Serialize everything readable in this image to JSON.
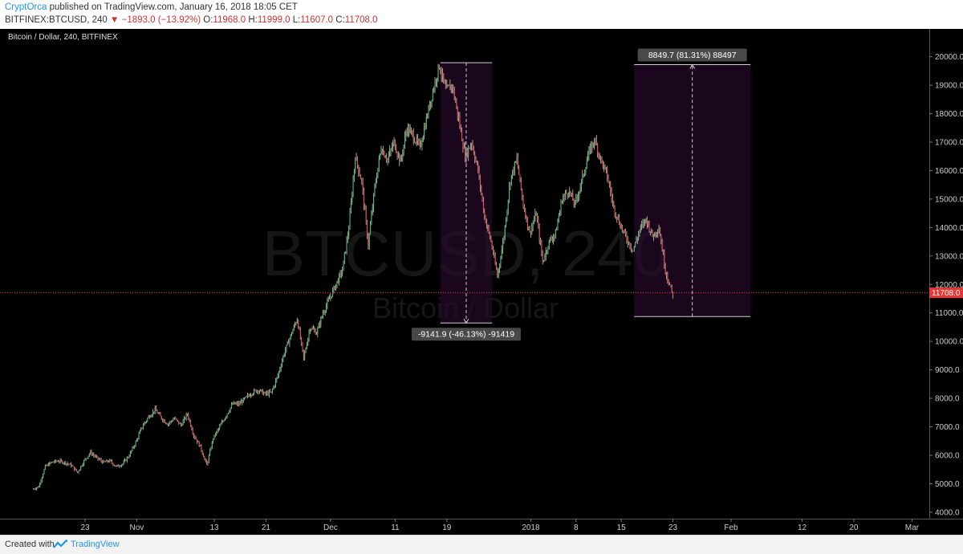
{
  "header": {
    "author": "CryptOrca",
    "published": "published on TradingView.com, January 16, 2018 18:05 CET",
    "symbol": "BITFINEX:BTCUSD, 240",
    "change": "−1893.0 (−13.92%)",
    "o_label": "O:",
    "o_value": "11968.0",
    "h_label": "H:",
    "h_value": "11999.0",
    "l_label": "L:",
    "l_value": "11607.0",
    "c_label": "C:",
    "c_value": "11708.0"
  },
  "footer": {
    "created": "Created with",
    "brand": "TradingView"
  },
  "chart_data": {
    "type": "candlestick",
    "title": "Bitcoin / Dollar, 240, BITFINEX",
    "watermark_symbol": "BTCUSD, 240",
    "watermark_name": "Bitcoin / Dollar",
    "ylim": [
      3800,
      20300
    ],
    "y_ticks": [
      "20000.0",
      "19000.0",
      "18000.0",
      "17000.0",
      "16000.0",
      "15000.0",
      "14000.0",
      "13000.0",
      "12000.0",
      "11000.0",
      "10000.0",
      "9000.0",
      "8000.0",
      "7000.0",
      "6000.0",
      "5000.0",
      "4000.0"
    ],
    "x_ticks": [
      {
        "label": "23",
        "day": 1
      },
      {
        "label": "Nov",
        "day": 9
      },
      {
        "label": "13",
        "day": 21
      },
      {
        "label": "21",
        "day": 29
      },
      {
        "label": "Dec",
        "day": 39
      },
      {
        "label": "11",
        "day": 49
      },
      {
        "label": "19",
        "day": 57
      },
      {
        "label": "2018",
        "day": 70
      },
      {
        "label": "8",
        "day": 77
      },
      {
        "label": "15",
        "day": 84
      },
      {
        "label": "23",
        "day": 92
      },
      {
        "label": "Feb",
        "day": 101
      },
      {
        "label": "12",
        "day": 112
      },
      {
        "label": "20",
        "day": 120
      },
      {
        "label": "Mar",
        "day": 129
      }
    ],
    "price_path": [
      [
        -7,
        4800
      ],
      [
        -6,
        4900
      ],
      [
        -5,
        5600
      ],
      [
        -4,
        5750
      ],
      [
        -3,
        5800
      ],
      [
        -2,
        5750
      ],
      [
        -1,
        5650
      ],
      [
        0,
        5400
      ],
      [
        1,
        5800
      ],
      [
        2,
        6100
      ],
      [
        3,
        5900
      ],
      [
        4,
        5750
      ],
      [
        5,
        5800
      ],
      [
        6,
        5600
      ],
      [
        7,
        5700
      ],
      [
        8,
        6000
      ],
      [
        9,
        6450
      ],
      [
        10,
        7000
      ],
      [
        11,
        7350
      ],
      [
        12,
        7600
      ],
      [
        13,
        7300
      ],
      [
        14,
        7100
      ],
      [
        15,
        7300
      ],
      [
        16,
        7050
      ],
      [
        17,
        7450
      ],
      [
        18,
        6700
      ],
      [
        19,
        6300
      ],
      [
        20,
        5650
      ],
      [
        21,
        6600
      ],
      [
        22,
        7000
      ],
      [
        23,
        7400
      ],
      [
        24,
        7800
      ],
      [
        25,
        7800
      ],
      [
        26,
        8000
      ],
      [
        27,
        8200
      ],
      [
        28,
        8300
      ],
      [
        29,
        8150
      ],
      [
        30,
        8200
      ],
      [
        31,
        8800
      ],
      [
        32,
        9600
      ],
      [
        33,
        10200
      ],
      [
        34,
        10800
      ],
      [
        35,
        9400
      ],
      [
        36,
        10500
      ],
      [
        37,
        10300
      ],
      [
        38,
        11000
      ],
      [
        39,
        11500
      ],
      [
        40,
        12000
      ],
      [
        41,
        12500
      ],
      [
        42,
        14000
      ],
      [
        43,
        16500
      ],
      [
        44,
        15600
      ],
      [
        45,
        13400
      ],
      [
        46,
        15400
      ],
      [
        47,
        16800
      ],
      [
        48,
        16400
      ],
      [
        49,
        17000
      ],
      [
        50,
        16300
      ],
      [
        51,
        17500
      ],
      [
        52,
        17200
      ],
      [
        53,
        16800
      ],
      [
        54,
        17800
      ],
      [
        55,
        18800
      ],
      [
        56,
        19700
      ],
      [
        57,
        18800
      ],
      [
        58,
        19000
      ],
      [
        59,
        17800
      ],
      [
        60,
        16500
      ],
      [
        61,
        17000
      ],
      [
        62,
        16000
      ],
      [
        63,
        14400
      ],
      [
        64,
        13500
      ],
      [
        65,
        12300
      ],
      [
        66,
        13700
      ],
      [
        67,
        15700
      ],
      [
        68,
        16400
      ],
      [
        69,
        14800
      ],
      [
        70,
        13800
      ],
      [
        71,
        14500
      ],
      [
        72,
        12800
      ],
      [
        73,
        13500
      ],
      [
        74,
        13800
      ],
      [
        75,
        15000
      ],
      [
        76,
        15300
      ],
      [
        77,
        14800
      ],
      [
        78,
        15600
      ],
      [
        79,
        16500
      ],
      [
        80,
        17100
      ],
      [
        81,
        16400
      ],
      [
        82,
        15800
      ],
      [
        83,
        14700
      ],
      [
        84,
        14100
      ],
      [
        85,
        13600
      ],
      [
        86,
        13200
      ],
      [
        87,
        13900
      ],
      [
        88,
        14300
      ],
      [
        89,
        13700
      ],
      [
        90,
        14000
      ],
      [
        91,
        12500
      ],
      [
        92,
        11700
      ]
    ],
    "current_price": {
      "value": 11708.0,
      "label": "11708.0",
      "color": "#e53935"
    },
    "measures": [
      {
        "from_day": 56,
        "to_day": 64,
        "from_price": 19790,
        "to_price": 10648,
        "arrow": "down",
        "label": "-9141.9 (-46.13%) -91419"
      },
      {
        "from_day": 86,
        "to_day": 104,
        "from_price": 10872,
        "to_price": 19722,
        "arrow": "up",
        "label": "8849.7 (81.31%) 88497"
      }
    ],
    "colors": {
      "up": "#53b987",
      "down": "#eb4d5c",
      "wick": "#c8c8a8",
      "background": "#000000",
      "axis_text": "#cccccc"
    }
  }
}
